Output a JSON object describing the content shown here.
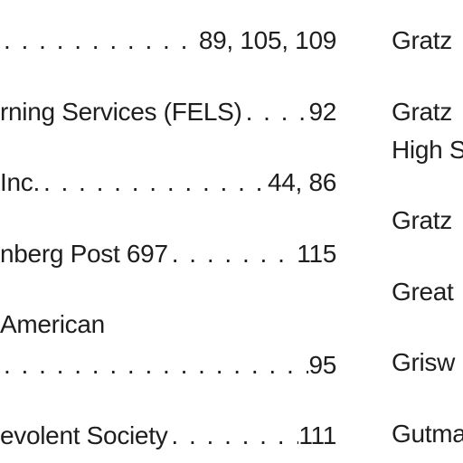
{
  "left_column": {
    "entries": [
      {
        "name": "",
        "pages": "89, 105, 109"
      },
      {
        "name": "rning Services (FELS)",
        "pages": "92"
      },
      {
        "name": "Inc.",
        "pages": "44, 86"
      },
      {
        "name": "nberg Post 697",
        "pages": "115"
      },
      {
        "name_line1": "American",
        "name": "",
        "pages": "95"
      },
      {
        "name": "evolent Society",
        "pages": "111"
      }
    ]
  },
  "right_column": {
    "lines": [
      "Gratz",
      "Gratz",
      "High S",
      "Gratz",
      "Great",
      "Grisw",
      "Gutma"
    ]
  }
}
